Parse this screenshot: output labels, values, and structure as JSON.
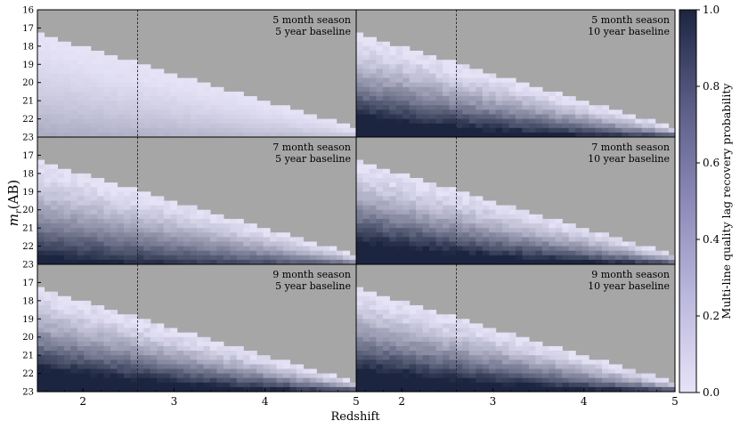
{
  "chart_data": {
    "type": "heatmap",
    "xlabel": "Redshift",
    "ylabel": "m_r (AB)",
    "xlim": [
      1.5,
      5.0
    ],
    "ylim": [
      23,
      16
    ],
    "x_ticks": [
      2,
      3,
      4,
      5
    ],
    "y_ticks": [
      16,
      17,
      18,
      19,
      20,
      21,
      22,
      23
    ],
    "reference_line_x": 2.6,
    "colorbar": {
      "label": "Multi-line quality lag recovery probability",
      "range": [
        0.0,
        1.0
      ],
      "ticks": [
        "0.0",
        "0.2",
        "0.4",
        "0.6",
        "0.8",
        "1.0"
      ],
      "low_color": "#e6e3f7",
      "high_color": "#1c2540"
    },
    "undetectable_color": "#a6a6a6",
    "detection_limit": {
      "z": [
        1.5,
        5.0
      ],
      "m_r_bright_limit": [
        17.3,
        22.5
      ]
    },
    "panels": [
      {
        "season": "5 month season",
        "baseline": "5 year baseline",
        "peak_probability": 0.2
      },
      {
        "season": "5 month season",
        "baseline": "10 year baseline",
        "peak_probability": 0.95
      },
      {
        "season": "7 month season",
        "baseline": "5 year baseline",
        "peak_probability": 0.75
      },
      {
        "season": "7 month season",
        "baseline": "10 year baseline",
        "peak_probability": 1.0
      },
      {
        "season": "9 month season",
        "baseline": "5 year baseline",
        "peak_probability": 1.0
      },
      {
        "season": "9 month season",
        "baseline": "10 year baseline",
        "peak_probability": 1.0
      }
    ]
  }
}
